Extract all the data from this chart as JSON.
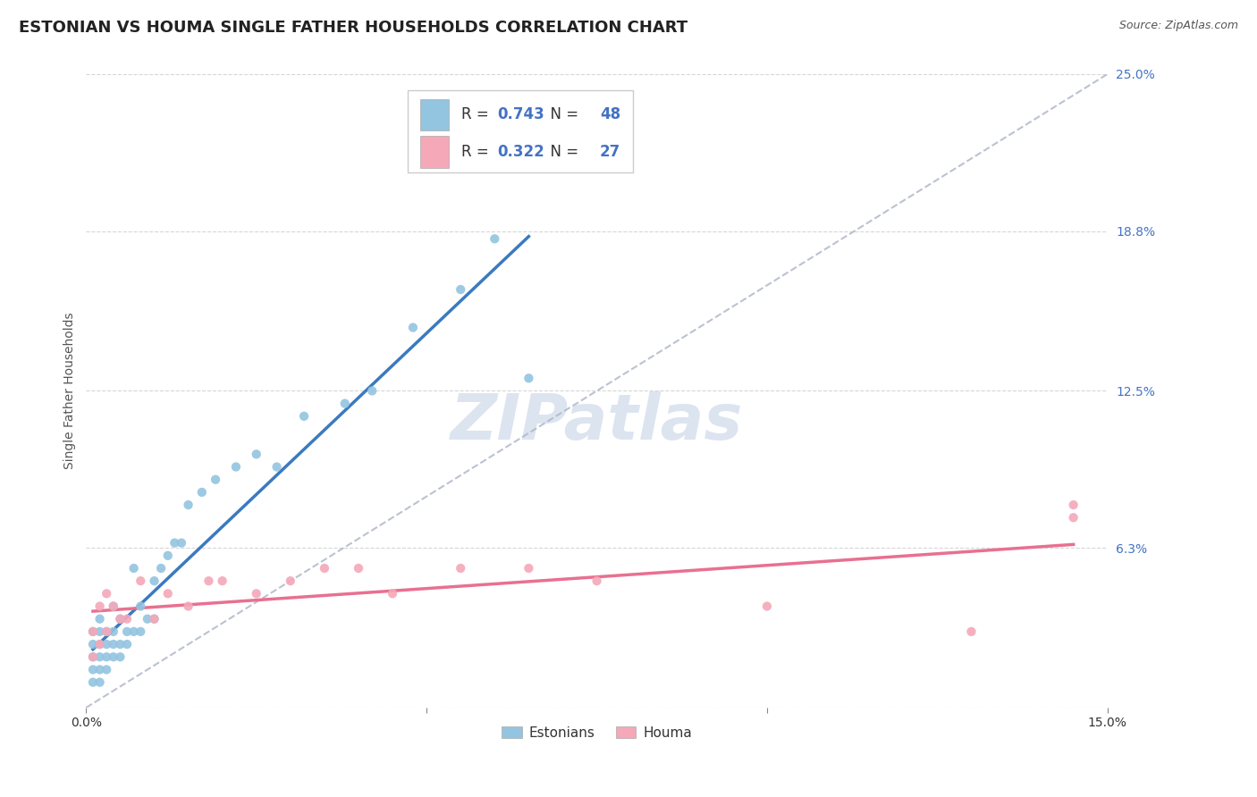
{
  "title": "ESTONIAN VS HOUMA SINGLE FATHER HOUSEHOLDS CORRELATION CHART",
  "source_text": "Source: ZipAtlas.com",
  "ylabel": "Single Father Households",
  "watermark": "ZIPatlas",
  "xlim": [
    0.0,
    0.15
  ],
  "ylim": [
    0.0,
    0.25
  ],
  "xtick_positions": [
    0.0,
    0.05,
    0.1,
    0.15
  ],
  "xticklabels": [
    "0.0%",
    "",
    "",
    "15.0%"
  ],
  "ytick_positions": [
    0.0,
    0.063,
    0.125,
    0.188,
    0.25
  ],
  "ytick_labels": [
    "",
    "6.3%",
    "12.5%",
    "18.8%",
    "25.0%"
  ],
  "R_estonian": 0.743,
  "N_estonian": 48,
  "R_houma": 0.322,
  "N_houma": 27,
  "estonian_color": "#93c4e0",
  "houma_color": "#f4a8b8",
  "estonian_line_color": "#3a7abf",
  "houma_line_color": "#e87090",
  "ref_line_color": "#b0b8c8",
  "background_color": "#ffffff",
  "legend_label_estonian": "Estonians",
  "legend_label_houma": "Houma",
  "title_fontsize": 13,
  "axis_label_fontsize": 10,
  "tick_fontsize": 10,
  "watermark_fontsize": 52,
  "watermark_color": "#dce4f0",
  "stat_color": "#4472c4",
  "estonian_x": [
    0.001,
    0.001,
    0.001,
    0.001,
    0.001,
    0.002,
    0.002,
    0.002,
    0.002,
    0.002,
    0.002,
    0.003,
    0.003,
    0.003,
    0.003,
    0.004,
    0.004,
    0.004,
    0.004,
    0.005,
    0.005,
    0.005,
    0.006,
    0.006,
    0.007,
    0.007,
    0.008,
    0.008,
    0.009,
    0.01,
    0.01,
    0.011,
    0.012,
    0.013,
    0.014,
    0.015,
    0.017,
    0.019,
    0.022,
    0.025,
    0.028,
    0.032,
    0.038,
    0.042,
    0.048,
    0.055,
    0.06,
    0.065
  ],
  "estonian_y": [
    0.01,
    0.015,
    0.02,
    0.025,
    0.03,
    0.01,
    0.015,
    0.02,
    0.025,
    0.03,
    0.035,
    0.015,
    0.02,
    0.025,
    0.03,
    0.02,
    0.025,
    0.03,
    0.04,
    0.02,
    0.025,
    0.035,
    0.025,
    0.03,
    0.03,
    0.055,
    0.03,
    0.04,
    0.035,
    0.035,
    0.05,
    0.055,
    0.06,
    0.065,
    0.065,
    0.08,
    0.085,
    0.09,
    0.095,
    0.1,
    0.095,
    0.115,
    0.12,
    0.125,
    0.15,
    0.165,
    0.185,
    0.13
  ],
  "houma_x": [
    0.001,
    0.001,
    0.002,
    0.002,
    0.003,
    0.003,
    0.004,
    0.005,
    0.006,
    0.008,
    0.01,
    0.012,
    0.015,
    0.018,
    0.02,
    0.025,
    0.03,
    0.035,
    0.04,
    0.045,
    0.055,
    0.065,
    0.075,
    0.1,
    0.13,
    0.145,
    0.145
  ],
  "houma_y": [
    0.02,
    0.03,
    0.025,
    0.04,
    0.03,
    0.045,
    0.04,
    0.035,
    0.035,
    0.05,
    0.035,
    0.045,
    0.04,
    0.05,
    0.05,
    0.045,
    0.05,
    0.055,
    0.055,
    0.045,
    0.055,
    0.055,
    0.05,
    0.04,
    0.03,
    0.075,
    0.08
  ]
}
